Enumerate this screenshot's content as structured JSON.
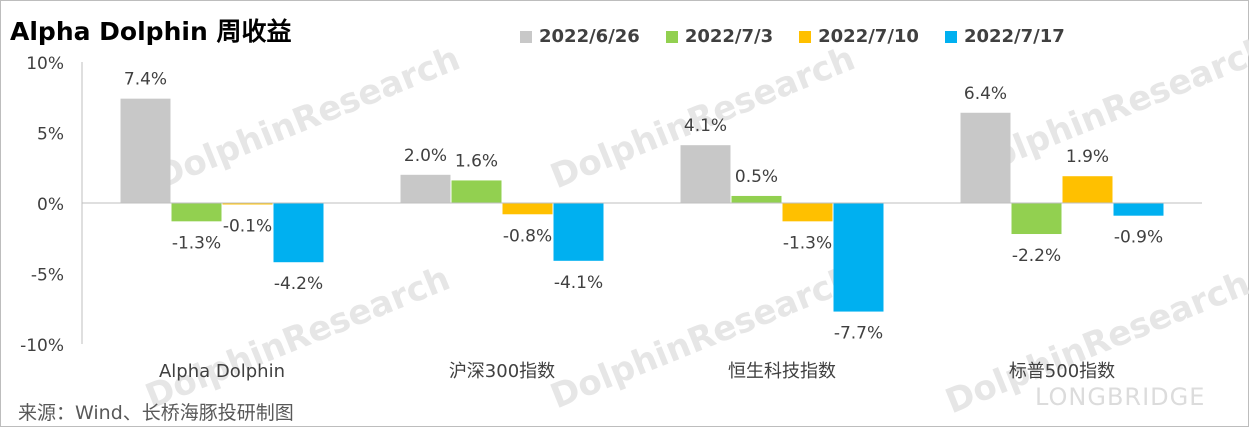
{
  "title": "Alpha Dolphin 周收益",
  "source": "来源：Wind、长桥海豚投研制图",
  "watermark": {
    "main": "DolphinResearch",
    "brand": "LONGBRIDGE"
  },
  "chart_data": {
    "type": "bar",
    "categories": [
      "Alpha Dolphin",
      "沪深300指数",
      "恒生科技指数",
      "标普500指数"
    ],
    "series": [
      {
        "name": "2022/6/26",
        "color": "#c8c8c8",
        "values": [
          7.4,
          2.0,
          4.1,
          6.4
        ],
        "labels": [
          "7.4%",
          "2.0%",
          "4.1%",
          "6.4%"
        ]
      },
      {
        "name": "2022/7/3",
        "color": "#92d050",
        "values": [
          -1.3,
          1.6,
          0.5,
          -2.2
        ],
        "labels": [
          "-1.3%",
          "1.6%",
          "0.5%",
          "-2.2%"
        ]
      },
      {
        "name": "2022/7/10",
        "color": "#ffc000",
        "values": [
          -0.1,
          -0.8,
          -1.3,
          1.9
        ],
        "labels": [
          "-0.1%",
          "-0.8%",
          "-1.3%",
          "1.9%"
        ]
      },
      {
        "name": "2022/7/17",
        "color": "#00b0f0",
        "values": [
          -4.2,
          -4.1,
          -7.7,
          -0.9
        ],
        "labels": [
          "-4.2%",
          "-4.1%",
          "-7.7%",
          "-0.9%"
        ]
      }
    ],
    "yticks": [
      10,
      5,
      0,
      -5,
      -10
    ],
    "ytick_labels": [
      "10%",
      "5%",
      "0%",
      "-5%",
      "-10%"
    ],
    "ylim": [
      -10,
      10
    ],
    "grid": false,
    "legend": "top-right"
  }
}
